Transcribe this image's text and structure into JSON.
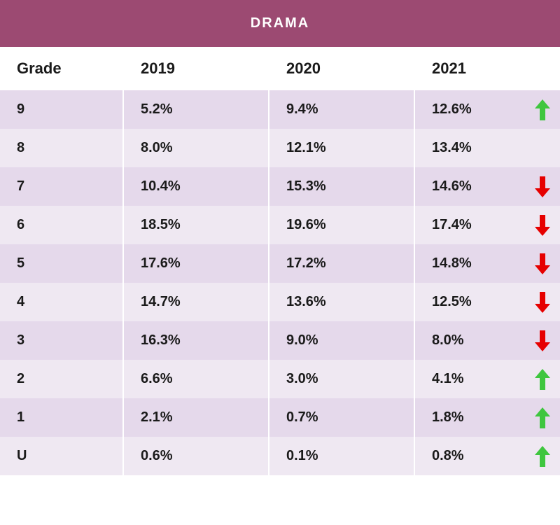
{
  "title": "DRAMA",
  "title_bg": "#9c4a72",
  "title_color": "#ffffff",
  "row_bg_even": "#e5d9eb",
  "row_bg_odd": "#efe8f2",
  "arrow_up_color": "#3fc63f",
  "arrow_down_color": "#e60000",
  "text_color": "#1a1a1a",
  "columns": [
    "Grade",
    "2019",
    "2020",
    "2021"
  ],
  "rows": [
    {
      "grade": "9",
      "y2019": "5.2%",
      "y2020": "9.4%",
      "y2021": "12.6%",
      "trend": "up"
    },
    {
      "grade": "8",
      "y2019": "8.0%",
      "y2020": "12.1%",
      "y2021": "13.4%",
      "trend": "none"
    },
    {
      "grade": "7",
      "y2019": "10.4%",
      "y2020": "15.3%",
      "y2021": "14.6%",
      "trend": "down"
    },
    {
      "grade": "6",
      "y2019": "18.5%",
      "y2020": "19.6%",
      "y2021": "17.4%",
      "trend": "down"
    },
    {
      "grade": "5",
      "y2019": "17.6%",
      "y2020": "17.2%",
      "y2021": "14.8%",
      "trend": "down"
    },
    {
      "grade": "4",
      "y2019": "14.7%",
      "y2020": "13.6%",
      "y2021": "12.5%",
      "trend": "down"
    },
    {
      "grade": "3",
      "y2019": "16.3%",
      "y2020": "9.0%",
      "y2021": "8.0%",
      "trend": "down"
    },
    {
      "grade": "2",
      "y2019": "6.6%",
      "y2020": "3.0%",
      "y2021": "4.1%",
      "trend": "up"
    },
    {
      "grade": "1",
      "y2019": "2.1%",
      "y2020": "0.7%",
      "y2021": "1.8%",
      "trend": "up"
    },
    {
      "grade": "U",
      "y2019": "0.6%",
      "y2020": "0.1%",
      "y2021": "0.8%",
      "trend": "up"
    }
  ]
}
